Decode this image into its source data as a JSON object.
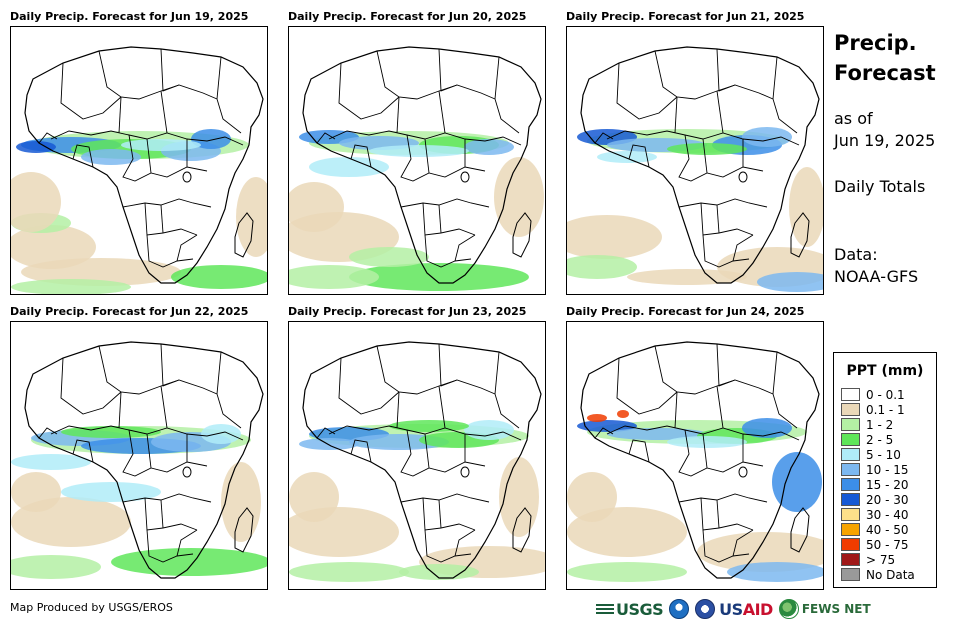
{
  "panels": [
    {
      "title": "Daily Precip. Forecast for Jun 19, 2025"
    },
    {
      "title": "Daily Precip. Forecast for Jun 20, 2025"
    },
    {
      "title": "Daily Precip. Forecast for Jun 21, 2025"
    },
    {
      "title": "Daily Precip. Forecast for Jun 22, 2025"
    },
    {
      "title": "Daily Precip. Forecast for Jun 23, 2025"
    },
    {
      "title": "Daily Precip. Forecast for Jun 24, 2025"
    }
  ],
  "side": {
    "title_line1": "Precip.",
    "title_line2": "Forecast",
    "asof_line1": "as of",
    "asof_line2": "Jun 19, 2025",
    "totals": "Daily Totals",
    "data_label": "Data:",
    "data_source": "NOAA-GFS"
  },
  "legend": {
    "title": "PPT (mm)",
    "items": [
      {
        "label": "0 - 0.1",
        "color": "#ffffff"
      },
      {
        "label": "0.1 - 1",
        "color": "#ead8b8"
      },
      {
        "label": "1 - 2",
        "color": "#b4f0a4"
      },
      {
        "label": "2 - 5",
        "color": "#5fe65a"
      },
      {
        "label": "5 - 10",
        "color": "#b0ecf8"
      },
      {
        "label": "10 - 15",
        "color": "#7db8f0"
      },
      {
        "label": "15 - 20",
        "color": "#3c8ee8"
      },
      {
        "label": "20 - 30",
        "color": "#1659d4"
      },
      {
        "label": "30 - 40",
        "color": "#fde08a"
      },
      {
        "label": "40 - 50",
        "color": "#f7a400"
      },
      {
        "label": "50 - 75",
        "color": "#f03c00"
      },
      {
        "label": "> 75",
        "color": "#a01818"
      },
      {
        "label": "No Data",
        "color": "#999999"
      }
    ]
  },
  "footer": {
    "credit": "Map Produced by USGS/EROS",
    "usgs": "USGS",
    "usaid_us": "US",
    "usaid_aid": "AID",
    "fews": "FEWS NET"
  }
}
